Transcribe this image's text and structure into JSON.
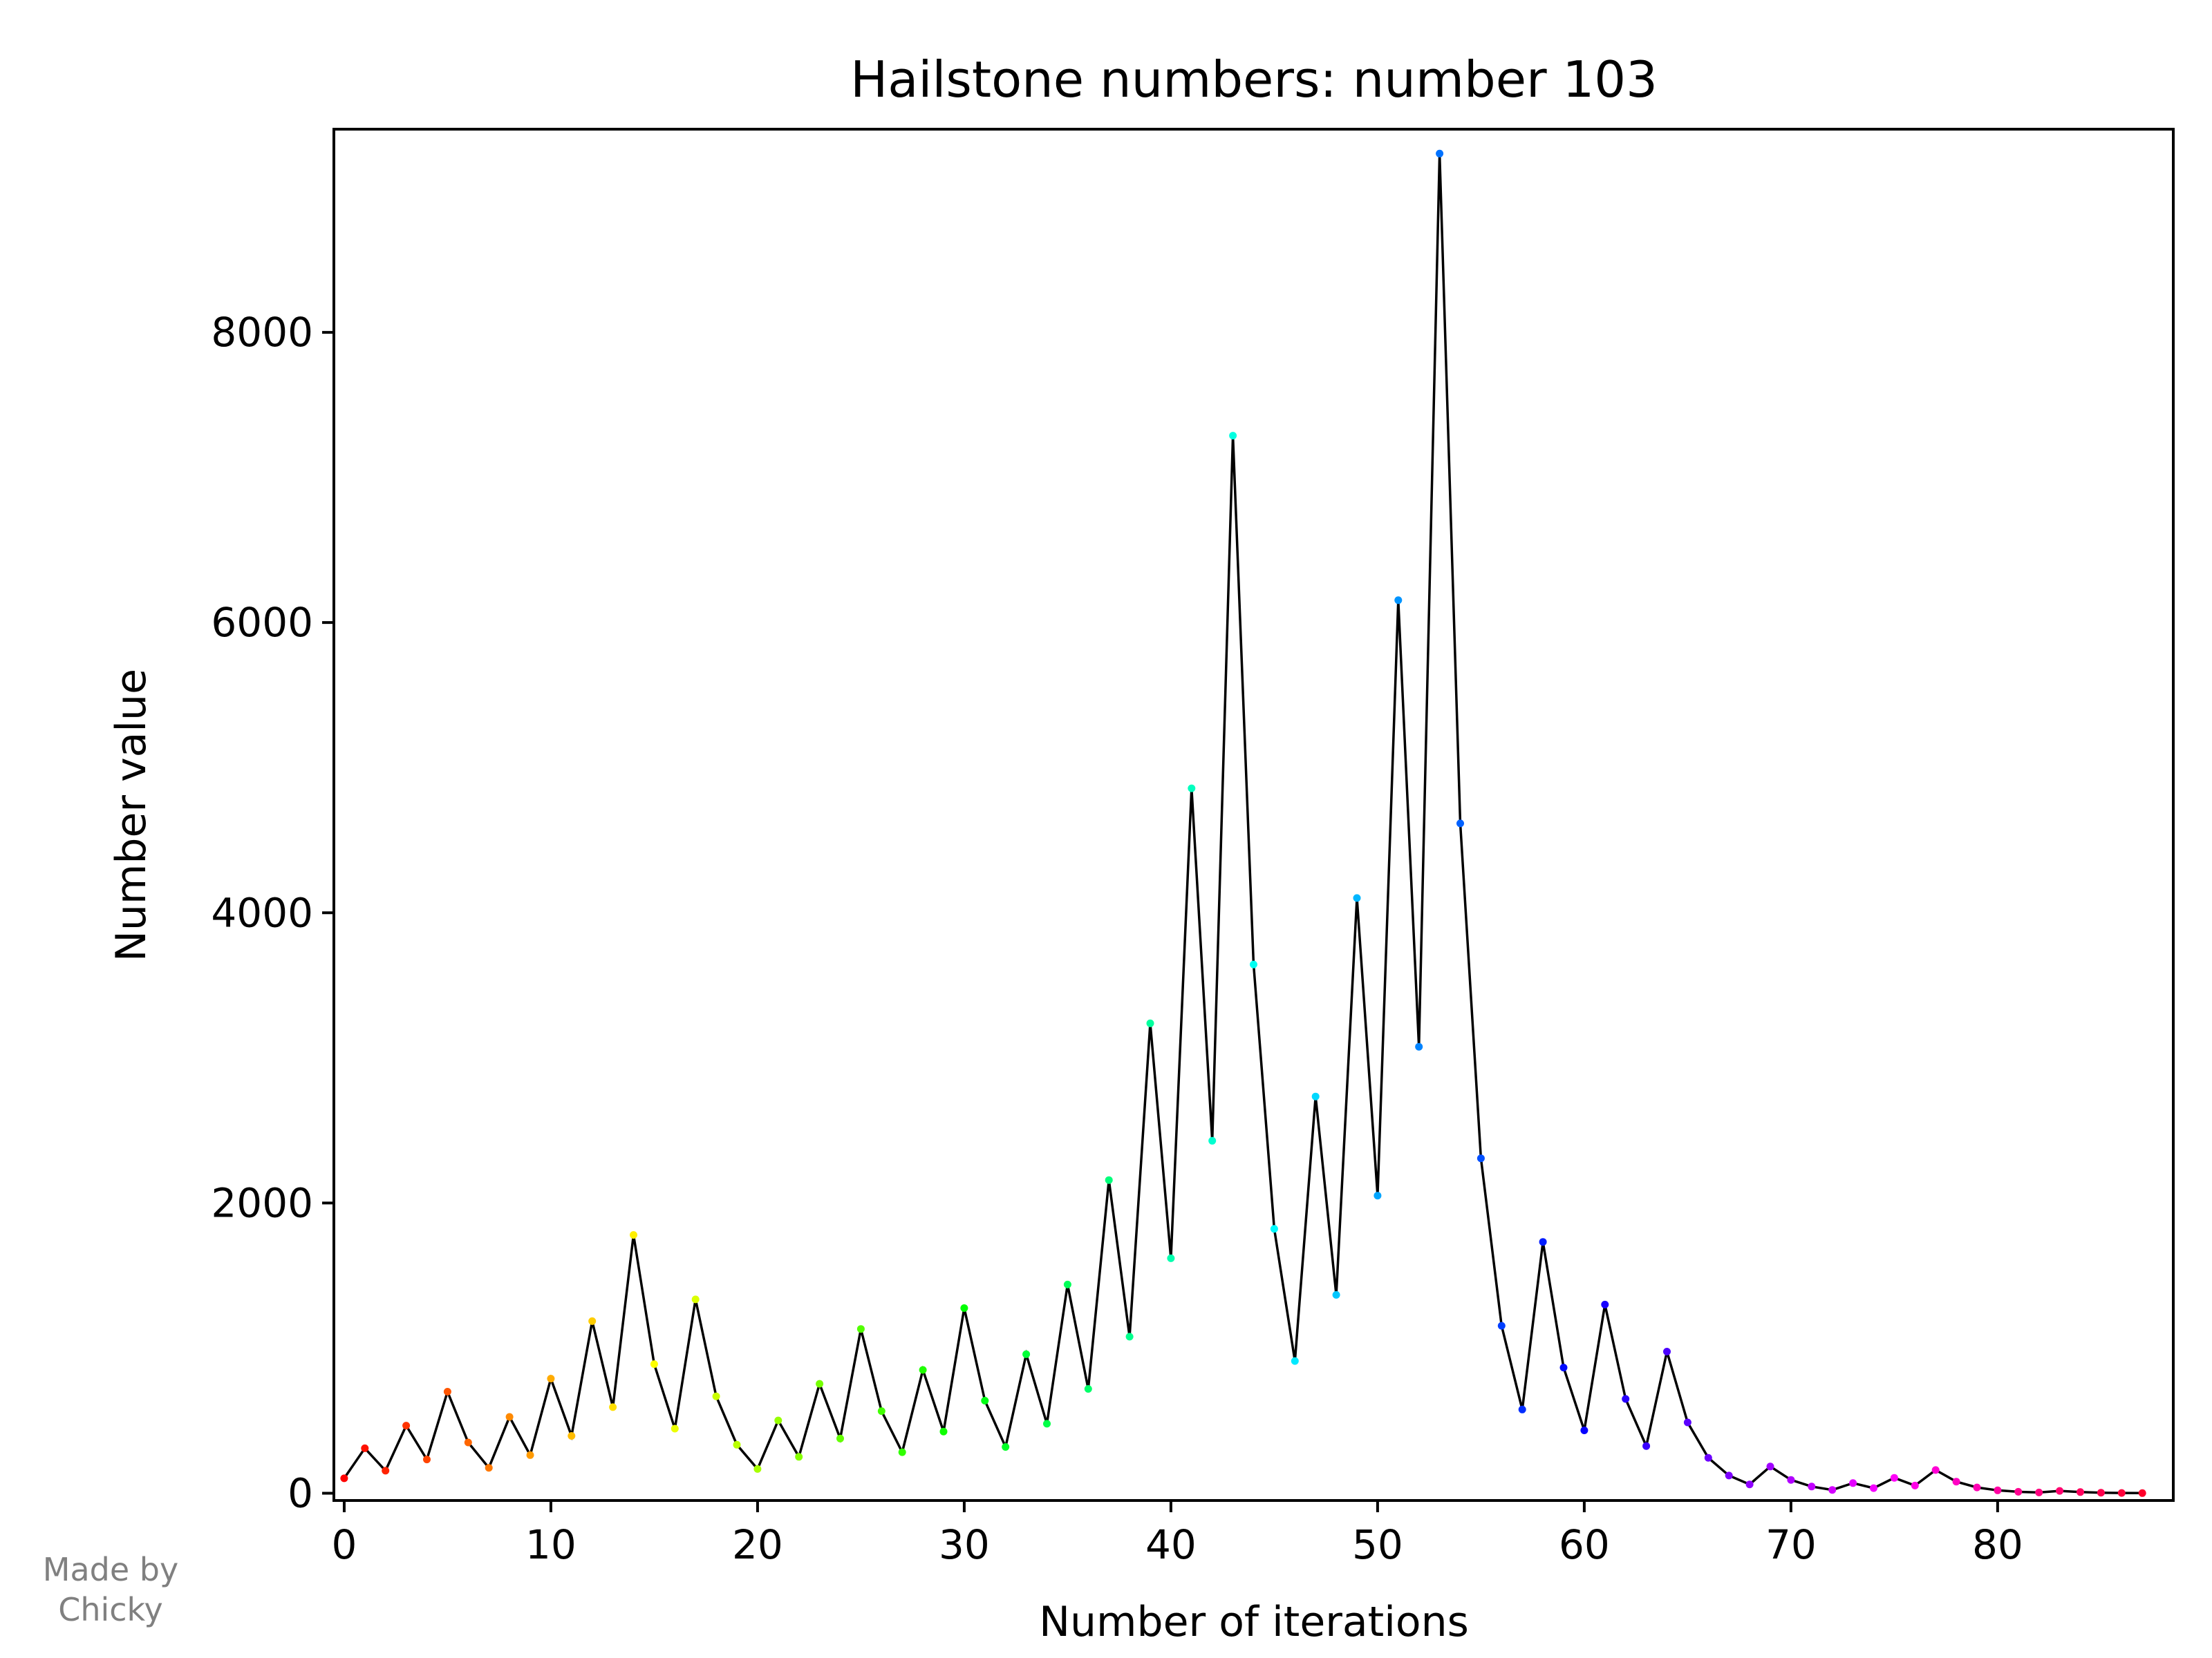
{
  "chart_data": {
    "type": "line",
    "title": "Hailstone numbers: number 103",
    "xlabel": "Number of iterations",
    "ylabel": "Number value",
    "xlim": [
      -0.5,
      88.5
    ],
    "ylim": [
      -50,
      9400
    ],
    "xticks": [
      0,
      10,
      20,
      30,
      40,
      50,
      60,
      70,
      80
    ],
    "yticks": [
      0,
      2000,
      4000,
      6000,
      8000
    ],
    "grid": false,
    "legend": "none",
    "line_color": "#000000",
    "marker_colormap": "hsv",
    "series": [
      {
        "x": [
          0,
          1,
          2,
          3,
          4,
          5,
          6,
          7,
          8,
          9,
          10,
          11,
          12,
          13,
          14,
          15,
          16,
          17,
          18,
          19,
          20,
          21,
          22,
          23,
          24,
          25,
          26,
          27,
          28,
          29,
          30,
          31,
          32,
          33,
          34,
          35,
          36,
          37,
          38,
          39,
          40,
          41,
          42,
          43,
          44,
          45,
          46,
          47,
          48,
          49,
          50,
          51,
          52,
          53,
          54,
          55,
          56,
          57,
          58,
          59,
          60,
          61,
          62,
          63,
          64,
          65,
          66,
          67,
          68,
          69,
          70,
          71,
          72,
          73,
          74,
          75,
          76,
          77,
          78,
          79,
          80,
          81,
          82,
          83,
          84,
          85,
          86,
          87
        ],
        "values": [
          103,
          310,
          155,
          466,
          233,
          700,
          350,
          175,
          526,
          263,
          790,
          395,
          1186,
          593,
          1780,
          890,
          445,
          1336,
          668,
          334,
          167,
          502,
          251,
          754,
          377,
          1132,
          566,
          283,
          850,
          425,
          1276,
          638,
          319,
          958,
          479,
          1438,
          719,
          2158,
          1079,
          3238,
          1619,
          4858,
          2429,
          7288,
          3644,
          1822,
          911,
          2734,
          1367,
          4102,
          2051,
          6154,
          3077,
          9232,
          4616,
          2308,
          1154,
          577,
          1732,
          866,
          433,
          1300,
          650,
          325,
          976,
          488,
          244,
          122,
          61,
          184,
          92,
          46,
          23,
          70,
          35,
          106,
          53,
          160,
          80,
          40,
          20,
          10,
          5,
          16,
          8,
          4,
          2,
          1
        ]
      }
    ]
  },
  "credit": {
    "line1": "Made by",
    "line2": "Chicky"
  }
}
